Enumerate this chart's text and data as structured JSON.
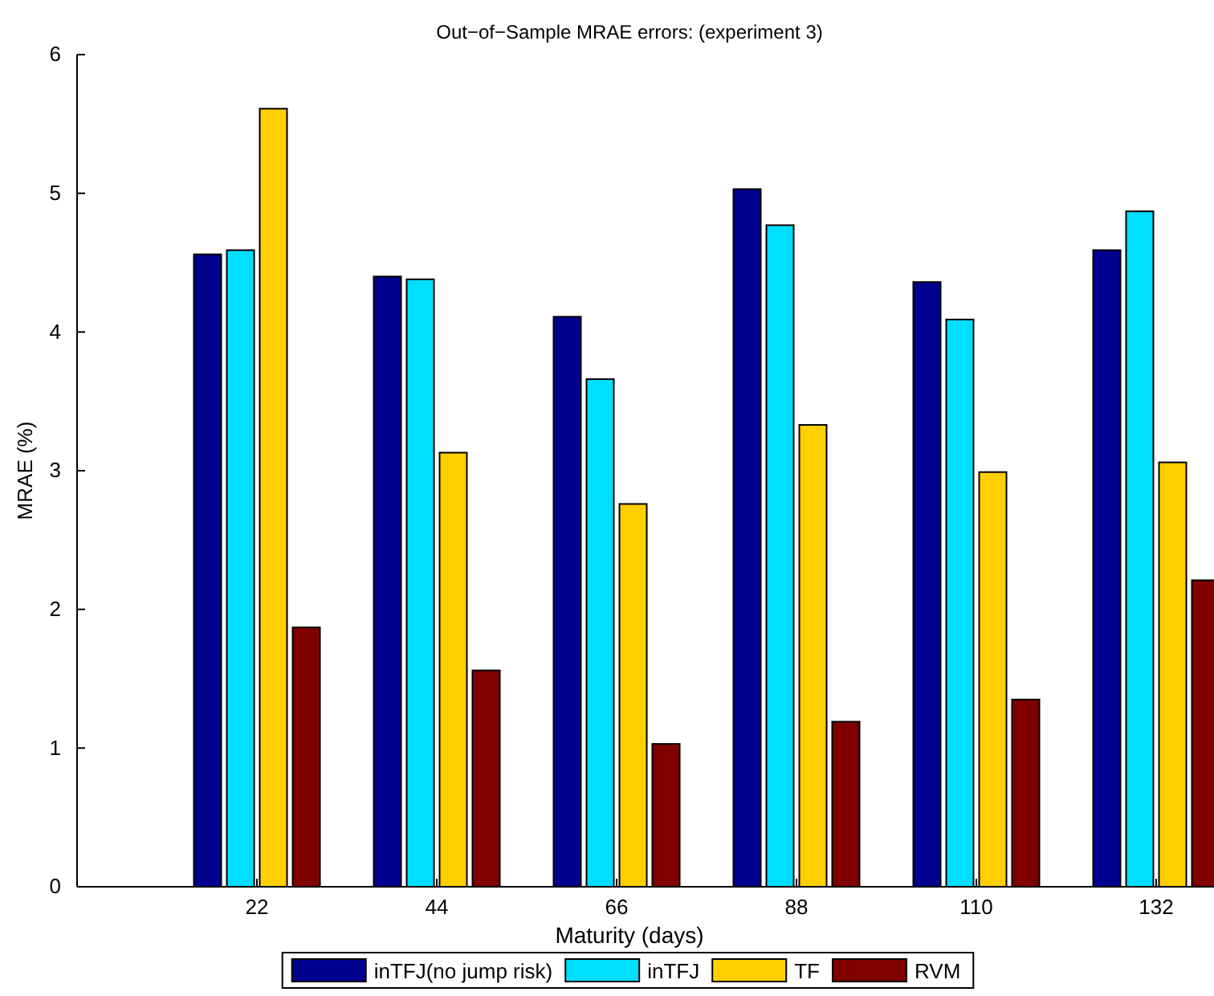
{
  "chart_data": {
    "type": "bar",
    "title": "Out−of−Sample MRAE errors: (experiment 3)",
    "xlabel": "Maturity (days)",
    "ylabel": "MRAE (%)",
    "categories": [
      "22",
      "44",
      "66",
      "88",
      "110",
      "132"
    ],
    "series": [
      {
        "name": "inTFJ(no jump risk)",
        "color": "#00008f",
        "values": [
          4.56,
          4.4,
          4.11,
          5.03,
          4.36,
          4.59
        ]
      },
      {
        "name": "inTFJ",
        "color": "#00dfff",
        "values": [
          4.59,
          4.38,
          3.66,
          4.77,
          4.09,
          4.87
        ]
      },
      {
        "name": "TF",
        "color": "#ffcf00",
        "values": [
          5.61,
          3.13,
          2.76,
          3.33,
          2.99,
          3.06
        ]
      },
      {
        "name": "RVM",
        "color": "#800000",
        "values": [
          1.87,
          1.56,
          1.03,
          1.19,
          1.35,
          2.21
        ]
      }
    ],
    "ylim": [
      0,
      6
    ],
    "yticks": [
      0,
      1,
      2,
      3,
      4,
      5,
      6
    ],
    "legend": "bottom",
    "grid": false
  }
}
